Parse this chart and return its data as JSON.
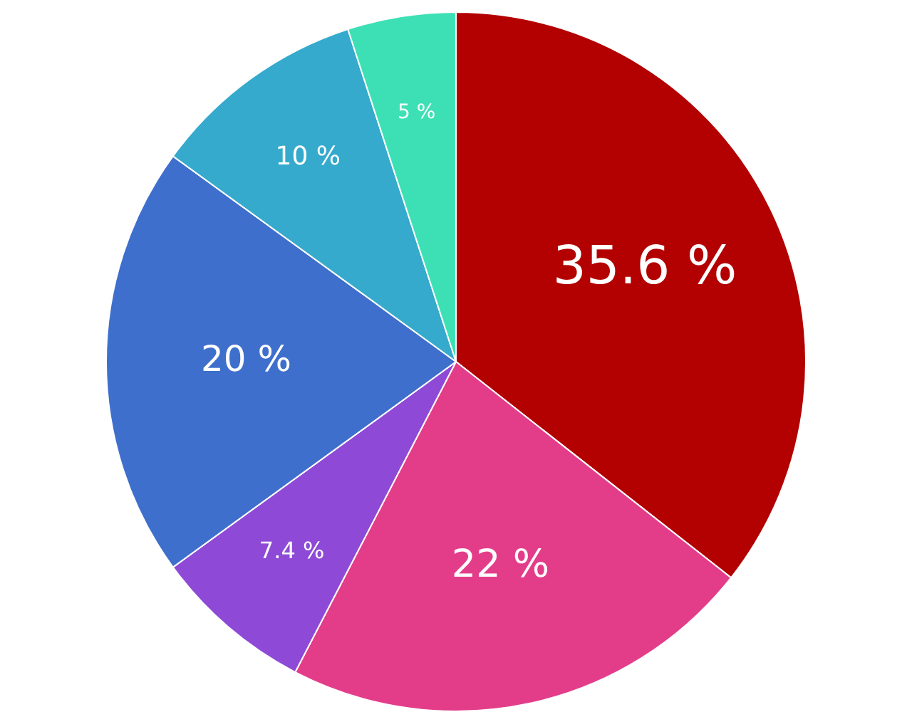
{
  "chart_data": {
    "type": "pie",
    "categories": [
      null,
      null,
      null,
      null,
      null,
      null
    ],
    "values": [
      35.6,
      22,
      7.4,
      20,
      10,
      5
    ],
    "colors": [
      "#b30000",
      "#e33d8a",
      "#8e4ad6",
      "#3e6fcc",
      "#35aacc",
      "#3de0b4"
    ],
    "value_labels": [
      "35.6 %",
      "22 %",
      "7.4 %",
      "20 %",
      "10 %",
      "5 %"
    ],
    "legend": false
  }
}
